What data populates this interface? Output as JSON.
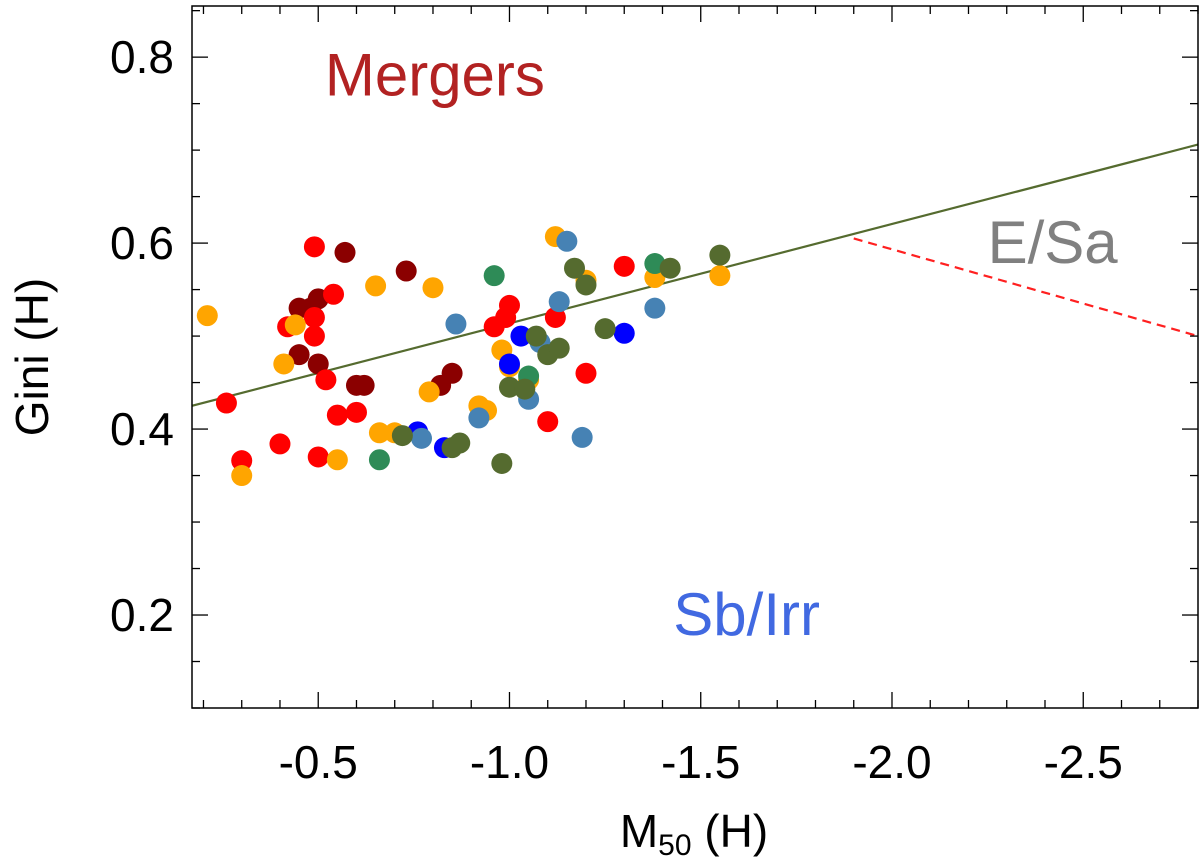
{
  "chart_data": {
    "type": "scatter",
    "title": "",
    "xlabel": "M",
    "xlabel_sub": "50",
    "xlabel_suffix": " (H)",
    "ylabel": "Gini (H)",
    "xlim": [
      -0.17,
      -2.8
    ],
    "ylim": [
      0.1,
      0.855
    ],
    "x_ticks": [
      -0.5,
      -1.0,
      -1.5,
      -2.0,
      -2.5
    ],
    "x_tick_labels": [
      "-0.5",
      "-1.0",
      "-1.5",
      "-2.0",
      "-2.5"
    ],
    "y_ticks": [
      0.2,
      0.4,
      0.6,
      0.8
    ],
    "y_tick_labels": [
      "0.2",
      "0.4",
      "0.6",
      "0.8"
    ],
    "grid": false,
    "region_labels": [
      {
        "text": "Mergers",
        "x": -0.805,
        "y": 0.78,
        "color": "#b22222"
      },
      {
        "text": "E/Sa",
        "x": -2.42,
        "y": 0.6,
        "color": "#808080"
      },
      {
        "text": "Sb/Irr",
        "x": -1.62,
        "y": 0.2,
        "color": "#4169e1"
      }
    ],
    "lines": [
      {
        "x": [
          -0.17,
          -2.8
        ],
        "y": [
          0.425,
          0.706
        ],
        "color": "#556b2f",
        "style": "solid"
      },
      {
        "x": [
          -1.9,
          -2.8
        ],
        "y": [
          0.605,
          0.5
        ],
        "color": "#ff2020",
        "style": "dashed"
      }
    ],
    "series": [
      {
        "color": "#8b0000",
        "points": [
          [
            -0.45,
            0.53
          ],
          [
            -0.48,
            0.53
          ],
          [
            -0.5,
            0.54
          ],
          [
            -0.57,
            0.59
          ],
          [
            -0.73,
            0.57
          ],
          [
            -0.45,
            0.48
          ],
          [
            -0.5,
            0.47
          ],
          [
            -0.62,
            0.447
          ],
          [
            -0.6,
            0.447
          ],
          [
            -0.85,
            0.46
          ],
          [
            -0.82,
            0.447
          ]
        ]
      },
      {
        "color": "#ff0000",
        "points": [
          [
            -0.49,
            0.596
          ],
          [
            -0.54,
            0.545
          ],
          [
            -0.42,
            0.51
          ],
          [
            -0.49,
            0.52
          ],
          [
            -0.49,
            0.5
          ],
          [
            -0.52,
            0.453
          ],
          [
            -0.55,
            0.415
          ],
          [
            -0.6,
            0.418
          ],
          [
            -0.26,
            0.428
          ],
          [
            -0.4,
            0.384
          ],
          [
            -0.3,
            0.366
          ],
          [
            -0.5,
            0.37
          ],
          [
            -0.96,
            0.51
          ],
          [
            -0.99,
            0.52
          ],
          [
            -1.0,
            0.533
          ],
          [
            -1.12,
            0.52
          ],
          [
            -1.3,
            0.575
          ],
          [
            -1.2,
            0.46
          ],
          [
            -1.1,
            0.408
          ]
        ]
      },
      {
        "color": "#ffa500",
        "points": [
          [
            -0.21,
            0.522
          ],
          [
            -0.44,
            0.512
          ],
          [
            -0.41,
            0.47
          ],
          [
            -0.3,
            0.35
          ],
          [
            -0.55,
            0.367
          ],
          [
            -0.65,
            0.554
          ],
          [
            -0.8,
            0.552
          ],
          [
            -0.79,
            0.44
          ],
          [
            -0.7,
            0.396
          ],
          [
            -0.66,
            0.396
          ],
          [
            -0.92,
            0.425
          ],
          [
            -1.0,
            0.467
          ],
          [
            -0.98,
            0.485
          ],
          [
            -1.05,
            0.453
          ],
          [
            -0.94,
            0.42
          ],
          [
            -1.12,
            0.607
          ],
          [
            -1.2,
            0.56
          ],
          [
            -1.38,
            0.563
          ],
          [
            -1.55,
            0.565
          ]
        ]
      },
      {
        "color": "#0000ff",
        "points": [
          [
            -1.0,
            0.47
          ],
          [
            -1.03,
            0.5
          ],
          [
            -0.76,
            0.397
          ],
          [
            -0.83,
            0.38
          ],
          [
            -1.3,
            0.503
          ]
        ]
      },
      {
        "color": "#4682b4",
        "points": [
          [
            -0.86,
            0.513
          ],
          [
            -1.13,
            0.537
          ],
          [
            -1.15,
            0.602
          ],
          [
            -1.38,
            0.53
          ],
          [
            -1.08,
            0.493
          ],
          [
            -1.05,
            0.432
          ],
          [
            -0.92,
            0.412
          ],
          [
            -0.77,
            0.39
          ],
          [
            -1.19,
            0.391
          ]
        ]
      },
      {
        "color": "#2e8b57",
        "points": [
          [
            -0.96,
            0.565
          ],
          [
            -1.38,
            0.578
          ],
          [
            -1.05,
            0.457
          ],
          [
            -0.66,
            0.367
          ]
        ]
      },
      {
        "color": "#556b2f",
        "points": [
          [
            -1.2,
            0.555
          ],
          [
            -1.17,
            0.573
          ],
          [
            -1.42,
            0.573
          ],
          [
            -1.55,
            0.587
          ],
          [
            -1.07,
            0.5
          ],
          [
            -1.1,
            0.48
          ],
          [
            -1.13,
            0.487
          ],
          [
            -1.25,
            0.508
          ],
          [
            -1.0,
            0.445
          ],
          [
            -1.04,
            0.443
          ],
          [
            -0.72,
            0.393
          ],
          [
            -0.85,
            0.38
          ],
          [
            -0.87,
            0.385
          ],
          [
            -0.98,
            0.363
          ]
        ]
      }
    ]
  }
}
